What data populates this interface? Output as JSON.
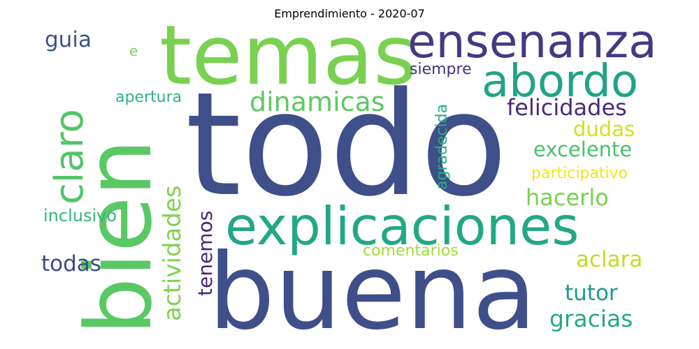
{
  "title": "Emprendimiento - 2020-07",
  "words": [
    {
      "text": "todo",
      "color": "#3f4f8a"
    },
    {
      "text": "buena",
      "color": "#3f4f8a"
    },
    {
      "text": "bien",
      "color": "#5ac864"
    },
    {
      "text": "temas",
      "color": "#7ad151"
    },
    {
      "text": "ensenanza",
      "color": "#443a83"
    },
    {
      "text": "explicaciones",
      "color": "#22a884"
    },
    {
      "text": "abordo",
      "color": "#20a486"
    },
    {
      "text": "claro",
      "color": "#52c569"
    },
    {
      "text": "dinamicas",
      "color": "#5ec962"
    },
    {
      "text": "actividades",
      "color": "#7fd34e"
    },
    {
      "text": "felicidades",
      "color": "#472c7a"
    },
    {
      "text": "dudas",
      "color": "#d2e21b"
    },
    {
      "text": "excelente",
      "color": "#4ac16d"
    },
    {
      "text": "participativo",
      "color": "#f1e51d"
    },
    {
      "text": "hacerlo",
      "color": "#7ad151"
    },
    {
      "text": "aclara",
      "color": "#bddf26"
    },
    {
      "text": "tutor",
      "color": "#1f9a8a"
    },
    {
      "text": "gracias",
      "color": "#25ab82"
    },
    {
      "text": "guia",
      "color": "#3b528b"
    },
    {
      "text": "e",
      "color": "#7ad151"
    },
    {
      "text": "siempre",
      "color": "#46327e"
    },
    {
      "text": "apertura",
      "color": "#2fb47c"
    },
    {
      "text": "agradecida",
      "color": "#27ad81"
    },
    {
      "text": "inclusivo",
      "color": "#35b779"
    },
    {
      "text": "tenemos",
      "color": "#482475"
    },
    {
      "text": "comentarios",
      "color": "#a0da39"
    },
    {
      "text": "todas",
      "color": "#3e4a89"
    }
  ]
}
